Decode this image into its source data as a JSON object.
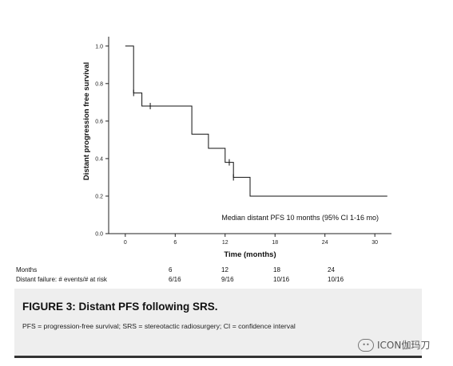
{
  "chart_data": {
    "type": "line",
    "title": "",
    "xlabel": "Time (months)",
    "ylabel": "Distant progression free survival",
    "xlim": [
      -2,
      32
    ],
    "ylim": [
      0,
      1.05
    ],
    "x_ticks": [
      0,
      6,
      12,
      18,
      24,
      30
    ],
    "y_ticks": [
      0.0,
      0.2,
      0.4,
      0.6,
      0.8,
      1.0
    ],
    "y_tick_labels": [
      "0.0",
      "0.2",
      "0.4",
      "0.6",
      "0.8",
      "1.0"
    ],
    "grid": false,
    "series": [
      {
        "step_points": [
          [
            0,
            1.0
          ],
          [
            1,
            1.0
          ],
          [
            1,
            0.75
          ],
          [
            2,
            0.75
          ],
          [
            2,
            0.68
          ],
          [
            8,
            0.68
          ],
          [
            8,
            0.53
          ],
          [
            10,
            0.53
          ],
          [
            10,
            0.455
          ],
          [
            12,
            0.455
          ],
          [
            12,
            0.38
          ],
          [
            13,
            0.38
          ],
          [
            13,
            0.3
          ],
          [
            15,
            0.3
          ],
          [
            15,
            0.2
          ],
          [
            31.5,
            0.2
          ]
        ],
        "censored": [
          [
            1,
            0.75
          ],
          [
            3,
            0.68
          ],
          [
            12.5,
            0.38
          ],
          [
            13,
            0.3
          ]
        ]
      }
    ],
    "annotation": "Median distant PFS 10 months (95% CI 1-16 mo)"
  },
  "risk_table": {
    "label_months": "Months",
    "label_failure": "Distant failure: # events/# at risk",
    "months": [
      "6",
      "12",
      "18",
      "24"
    ],
    "values": [
      "6/16",
      "9/16",
      "10/16",
      "10/16"
    ]
  },
  "figure": {
    "title": "FIGURE 3: Distant PFS following SRS.",
    "caption": "PFS = progression-free survival; SRS = stereotactic radiosurgery; CI = confidence interval"
  },
  "watermark": {
    "text": "ICON伽玛刀",
    "icon": "wechat-icon"
  }
}
